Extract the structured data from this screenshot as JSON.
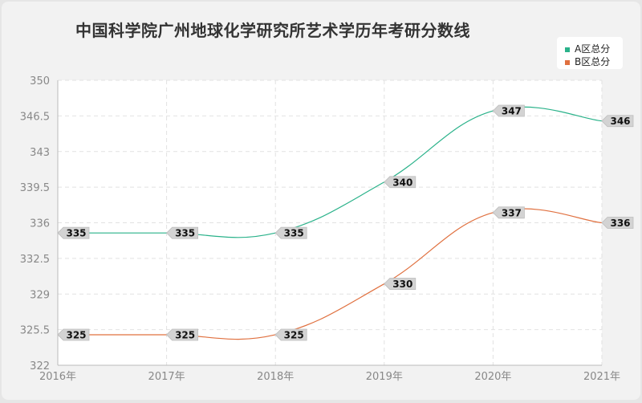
{
  "title": "中国科学院广州地球化学研究所艺术学历年考研分数线",
  "chart_data": {
    "type": "line",
    "title": "中国科学院广州地球化学研究所艺术学历年考研分数线",
    "xlabel": "",
    "ylabel": "",
    "categories": [
      "2016年",
      "2017年",
      "2018年",
      "2019年",
      "2020年",
      "2021年"
    ],
    "ylim": [
      322,
      350
    ],
    "yticks": [
      322,
      325.5,
      329,
      332.5,
      336,
      339.5,
      343,
      346.5,
      350
    ],
    "grid": true,
    "legend_position": "top-right",
    "series": [
      {
        "name": "A区总分",
        "color": "#2ab28a",
        "values": [
          335,
          335,
          335,
          340,
          347,
          346
        ]
      },
      {
        "name": "B区总分",
        "color": "#e0703f",
        "values": [
          325,
          325,
          325,
          330,
          337,
          336
        ]
      }
    ]
  }
}
